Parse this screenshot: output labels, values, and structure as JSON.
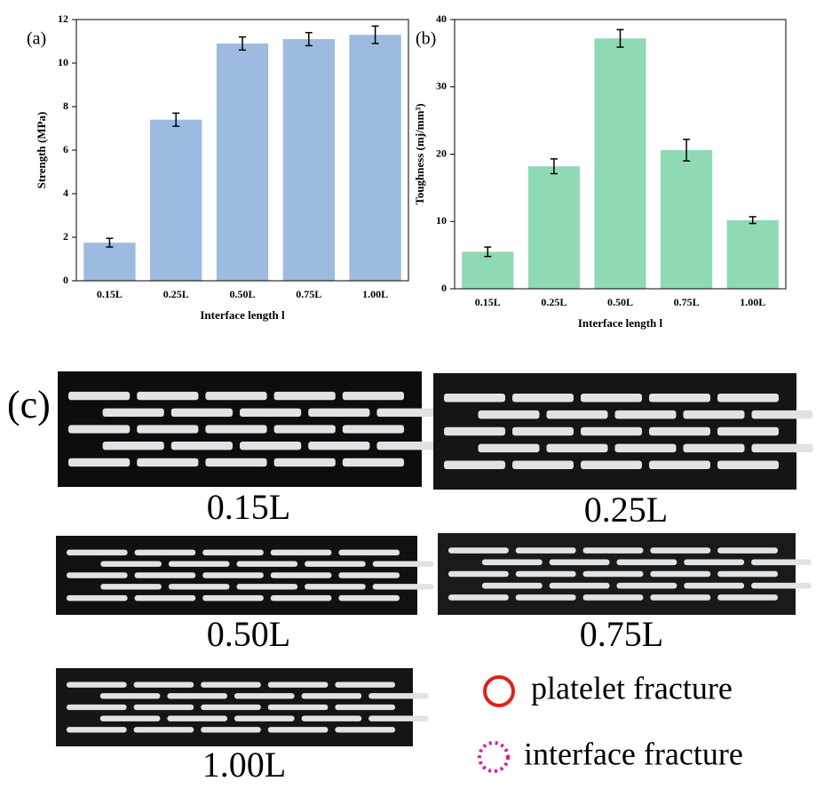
{
  "chart_data": [
    {
      "type": "bar",
      "panel_label": "(a)",
      "y_label": "Strength (MPa)",
      "x_label": "Interface length l",
      "categories": [
        "0.15L",
        "0.25L",
        "0.50L",
        "0.75L",
        "1.00L"
      ],
      "values": [
        1.75,
        7.4,
        10.9,
        11.1,
        11.3
      ],
      "errors": [
        0.2,
        0.3,
        0.3,
        0.3,
        0.4
      ],
      "color": "#9dbbe0",
      "ylim": [
        0,
        12
      ],
      "yticks": [
        0,
        2,
        4,
        6,
        8,
        10,
        12
      ]
    },
    {
      "type": "bar",
      "panel_label": "(b)",
      "y_label": "Toughness (mj/mm³)",
      "x_label": "Interface length l",
      "categories": [
        "0.15L",
        "0.25L",
        "0.50L",
        "0.75L",
        "1.00L"
      ],
      "values": [
        5.5,
        18.2,
        37.2,
        20.6,
        10.2
      ],
      "errors": [
        0.7,
        1.1,
        1.3,
        1.6,
        0.5
      ],
      "color": "#8fdab5",
      "ylim": [
        0,
        40
      ],
      "yticks": [
        0,
        10,
        20,
        30,
        40
      ]
    }
  ],
  "panel_c": {
    "label": "(c)",
    "photos": [
      "0.15L",
      "0.25L",
      "0.50L",
      "0.75L",
      "1.00L"
    ],
    "legend": [
      "platelet fracture",
      "interface fracture"
    ]
  }
}
